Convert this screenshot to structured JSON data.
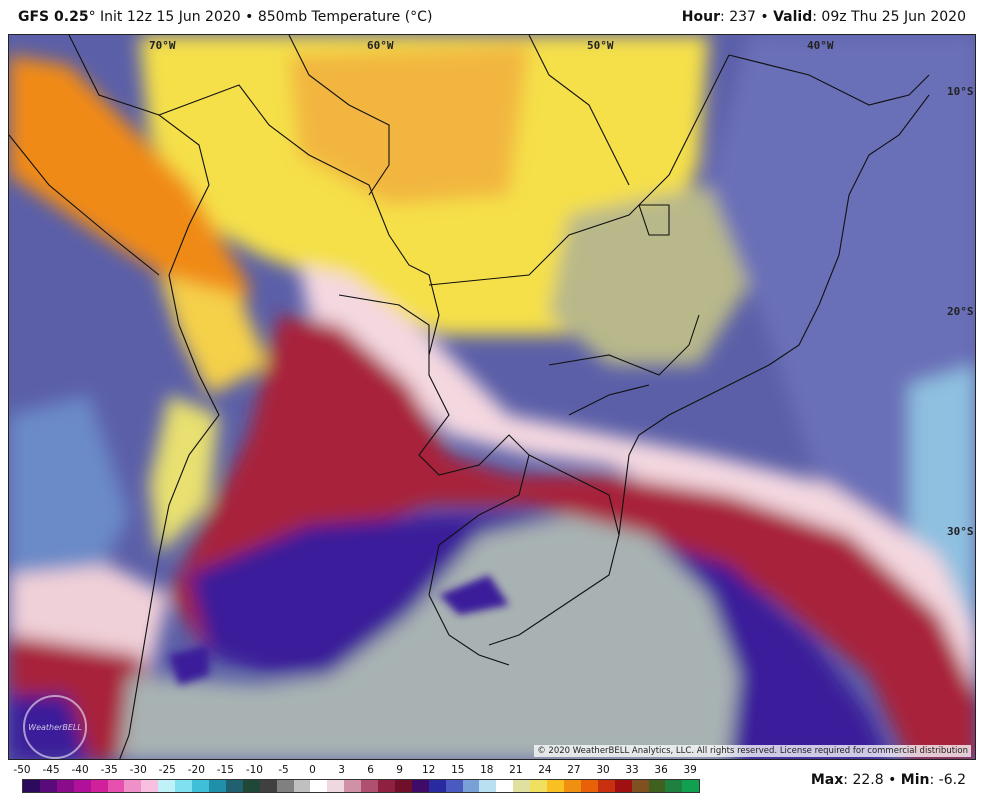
{
  "header": {
    "model": "GFS 0.25",
    "degree_mark": "°",
    "init": "Init 12z 15 Jun 2020",
    "sep": "•",
    "field": "850mb Temperature (",
    "unit": "°C",
    "field_close": ")",
    "hour_label": "Hour",
    "hour_value": "237",
    "valid_label": "Valid",
    "valid_value": "09z Thu 25 Jun 2020"
  },
  "map": {
    "longitudes": [
      "70°W",
      "60°W",
      "50°W",
      "40°W"
    ],
    "latitudes": [
      "10°S",
      "20°S",
      "30°S"
    ],
    "copyright": "© 2020 WeatherBELL Analytics, LLC. All rights reserved. License required for commercial distribution",
    "logo_text": "WeatherBELL",
    "colors": {
      "hot": "#f5a623",
      "warm": "#f7e04a",
      "mild": "#c9c97a",
      "cool_blue": "#5b5fa8",
      "cold_red": "#a8243a",
      "deep_blue": "#3a1a9a",
      "gray": "#aab4b4",
      "land_line": "#111111"
    }
  },
  "legend": {
    "ticks": [
      "-50",
      "-45",
      "-40",
      "-35",
      "-30",
      "-25",
      "-20",
      "-15",
      "-10",
      "-5",
      "0",
      "3",
      "6",
      "9",
      "12",
      "15",
      "18",
      "21",
      "24",
      "27",
      "30",
      "33",
      "36",
      "39"
    ],
    "colors": [
      "#2c0a5c",
      "#5a0a7a",
      "#8a0c8a",
      "#b0109a",
      "#d0209a",
      "#e850b0",
      "#f090c8",
      "#f8c0e0",
      "#c0f0f8",
      "#80e0f0",
      "#40c0d8",
      "#2090a8",
      "#206070",
      "#204838",
      "#404040",
      "#808080",
      "#c0c0c0",
      "#ffffff",
      "#f0d8e0",
      "#d090a8",
      "#b05070",
      "#902040",
      "#701028",
      "#400a68",
      "#2a2aa0",
      "#4a5ac0",
      "#7aa0d8",
      "#b8e0f0",
      "#ffffff",
      "#e0e0a0",
      "#f0e060",
      "#f8c020",
      "#f09010",
      "#e86008",
      "#c83010",
      "#a01010",
      "#805020",
      "#406020",
      "#208040",
      "#10a050"
    ],
    "max_label": "Max",
    "max_value": "22.8",
    "sep": "•",
    "min_label": "Min",
    "min_value": "-6.2"
  }
}
